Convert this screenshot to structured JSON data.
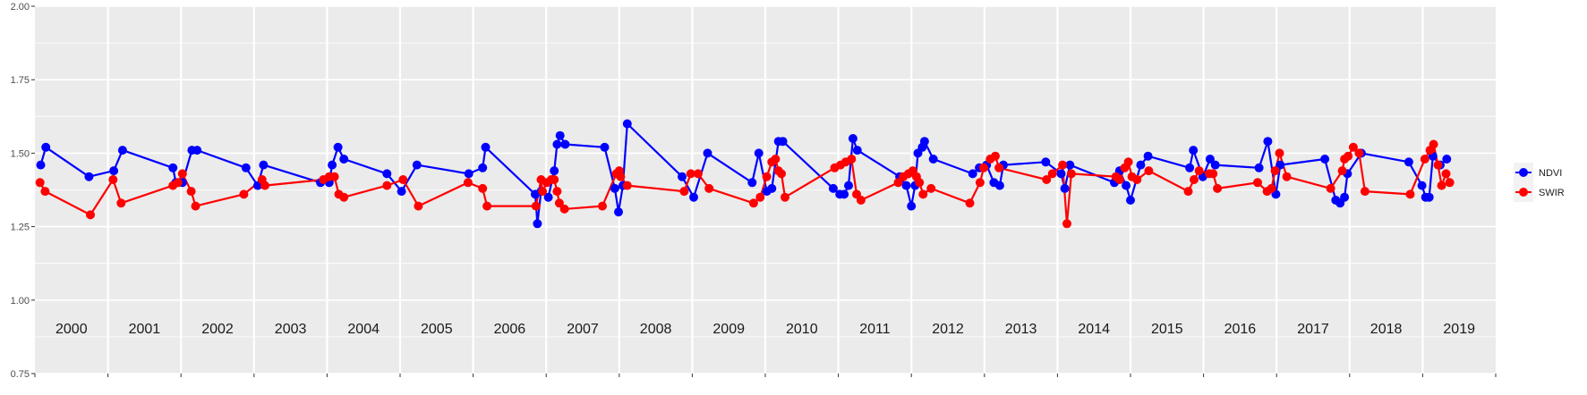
{
  "chart_data": {
    "type": "line",
    "title": "",
    "xlabel": "",
    "ylabel": "",
    "ylim": [
      0.75,
      2.0
    ],
    "xlim": [
      2000.0,
      2020.0
    ],
    "y_ticks": [
      "0.75",
      "1.00",
      "1.25",
      "1.50",
      "1.75",
      "2.00"
    ],
    "year_labels": [
      "2000",
      "2001",
      "2002",
      "2003",
      "2004",
      "2005",
      "2006",
      "2007",
      "2008",
      "2009",
      "2010",
      "2011",
      "2012",
      "2013",
      "2014",
      "2015",
      "2016",
      "2017",
      "2018",
      "2019"
    ],
    "grid": true,
    "legend_position": "right",
    "background": "#ebebeb",
    "gridline_color": "#ffffff",
    "series": [
      {
        "name": "NDVI",
        "color": "#0000ff",
        "points": [
          [
            2000.08,
            1.46
          ],
          [
            2000.15,
            1.52
          ],
          [
            2000.74,
            1.42
          ],
          [
            2001.08,
            1.44
          ],
          [
            2001.2,
            1.51
          ],
          [
            2001.89,
            1.45
          ],
          [
            2001.93,
            1.4
          ],
          [
            2002.02,
            1.4
          ],
          [
            2002.15,
            1.51
          ],
          [
            2002.22,
            1.51
          ],
          [
            2002.89,
            1.45
          ],
          [
            2003.05,
            1.39
          ],
          [
            2003.13,
            1.46
          ],
          [
            2003.91,
            1.4
          ],
          [
            2004.03,
            1.4
          ],
          [
            2004.07,
            1.46
          ],
          [
            2004.15,
            1.52
          ],
          [
            2004.23,
            1.48
          ],
          [
            2004.82,
            1.43
          ],
          [
            2005.02,
            1.37
          ],
          [
            2005.23,
            1.46
          ],
          [
            2005.94,
            1.43
          ],
          [
            2006.13,
            1.45
          ],
          [
            2006.17,
            1.52
          ],
          [
            2006.85,
            1.36
          ],
          [
            2006.88,
            1.26
          ],
          [
            2006.93,
            1.37
          ],
          [
            2007.03,
            1.35
          ],
          [
            2007.11,
            1.44
          ],
          [
            2007.15,
            1.53
          ],
          [
            2007.19,
            1.56
          ],
          [
            2007.26,
            1.53
          ],
          [
            2007.8,
            1.52
          ],
          [
            2007.94,
            1.38
          ],
          [
            2007.99,
            1.3
          ],
          [
            2008.05,
            1.39
          ],
          [
            2008.11,
            1.6
          ],
          [
            2008.86,
            1.42
          ],
          [
            2009.02,
            1.35
          ],
          [
            2009.21,
            1.5
          ],
          [
            2009.82,
            1.4
          ],
          [
            2009.91,
            1.5
          ],
          [
            2010.02,
            1.37
          ],
          [
            2010.09,
            1.38
          ],
          [
            2010.18,
            1.54
          ],
          [
            2010.24,
            1.54
          ],
          [
            2010.93,
            1.38
          ],
          [
            2011.02,
            1.36
          ],
          [
            2011.08,
            1.36
          ],
          [
            2011.14,
            1.39
          ],
          [
            2011.2,
            1.55
          ],
          [
            2011.26,
            1.51
          ],
          [
            2011.84,
            1.42
          ],
          [
            2011.93,
            1.39
          ],
          [
            2012.0,
            1.32
          ],
          [
            2012.05,
            1.39
          ],
          [
            2012.09,
            1.5
          ],
          [
            2012.15,
            1.52
          ],
          [
            2012.18,
            1.54
          ],
          [
            2012.3,
            1.48
          ],
          [
            2012.84,
            1.43
          ],
          [
            2012.93,
            1.45
          ],
          [
            2013.03,
            1.46
          ],
          [
            2013.13,
            1.4
          ],
          [
            2013.21,
            1.39
          ],
          [
            2013.26,
            1.46
          ],
          [
            2013.84,
            1.47
          ],
          [
            2014.05,
            1.43
          ],
          [
            2014.1,
            1.38
          ],
          [
            2014.17,
            1.46
          ],
          [
            2014.78,
            1.4
          ],
          [
            2014.85,
            1.44
          ],
          [
            2014.94,
            1.39
          ],
          [
            2015.0,
            1.34
          ],
          [
            2015.14,
            1.46
          ],
          [
            2015.24,
            1.49
          ],
          [
            2015.81,
            1.45
          ],
          [
            2015.86,
            1.51
          ],
          [
            2015.99,
            1.42
          ],
          [
            2016.09,
            1.48
          ],
          [
            2016.16,
            1.46
          ],
          [
            2016.76,
            1.45
          ],
          [
            2016.88,
            1.54
          ],
          [
            2016.99,
            1.36
          ],
          [
            2017.05,
            1.46
          ],
          [
            2017.66,
            1.48
          ],
          [
            2017.81,
            1.34
          ],
          [
            2017.87,
            1.33
          ],
          [
            2017.93,
            1.35
          ],
          [
            2017.97,
            1.43
          ],
          [
            2018.16,
            1.5
          ],
          [
            2018.81,
            1.47
          ],
          [
            2018.99,
            1.39
          ],
          [
            2019.04,
            1.35
          ],
          [
            2019.09,
            1.35
          ],
          [
            2019.14,
            1.49
          ],
          [
            2019.24,
            1.46
          ],
          [
            2019.33,
            1.48
          ]
        ]
      },
      {
        "name": "SWIR",
        "color": "#ff0000",
        "points": [
          [
            2000.07,
            1.4
          ],
          [
            2000.14,
            1.37
          ],
          [
            2000.76,
            1.29
          ],
          [
            2001.07,
            1.41
          ],
          [
            2001.18,
            1.33
          ],
          [
            2001.89,
            1.39
          ],
          [
            2001.96,
            1.4
          ],
          [
            2002.02,
            1.43
          ],
          [
            2002.14,
            1.37
          ],
          [
            2002.2,
            1.32
          ],
          [
            2002.86,
            1.36
          ],
          [
            2003.11,
            1.41
          ],
          [
            2003.15,
            1.39
          ],
          [
            2003.95,
            1.41
          ],
          [
            2004.03,
            1.42
          ],
          [
            2004.1,
            1.42
          ],
          [
            2004.16,
            1.36
          ],
          [
            2004.23,
            1.35
          ],
          [
            2004.82,
            1.39
          ],
          [
            2005.04,
            1.41
          ],
          [
            2005.25,
            1.32
          ],
          [
            2005.93,
            1.4
          ],
          [
            2006.13,
            1.38
          ],
          [
            2006.19,
            1.32
          ],
          [
            2006.86,
            1.32
          ],
          [
            2006.93,
            1.41
          ],
          [
            2006.95,
            1.37
          ],
          [
            2007.01,
            1.4
          ],
          [
            2007.07,
            1.41
          ],
          [
            2007.11,
            1.41
          ],
          [
            2007.15,
            1.37
          ],
          [
            2007.18,
            1.33
          ],
          [
            2007.25,
            1.31
          ],
          [
            2007.77,
            1.32
          ],
          [
            2007.96,
            1.43
          ],
          [
            2008.0,
            1.44
          ],
          [
            2008.02,
            1.42
          ],
          [
            2008.11,
            1.39
          ],
          [
            2008.89,
            1.37
          ],
          [
            2008.98,
            1.43
          ],
          [
            2009.08,
            1.43
          ],
          [
            2009.23,
            1.38
          ],
          [
            2009.84,
            1.33
          ],
          [
            2009.93,
            1.35
          ],
          [
            2010.02,
            1.42
          ],
          [
            2010.09,
            1.47
          ],
          [
            2010.14,
            1.48
          ],
          [
            2010.18,
            1.44
          ],
          [
            2010.22,
            1.43
          ],
          [
            2010.27,
            1.35
          ],
          [
            2010.95,
            1.45
          ],
          [
            2011.03,
            1.46
          ],
          [
            2011.1,
            1.47
          ],
          [
            2011.18,
            1.48
          ],
          [
            2011.25,
            1.36
          ],
          [
            2011.31,
            1.34
          ],
          [
            2011.82,
            1.4
          ],
          [
            2011.89,
            1.42
          ],
          [
            2011.96,
            1.43
          ],
          [
            2012.02,
            1.44
          ],
          [
            2012.07,
            1.42
          ],
          [
            2012.11,
            1.4
          ],
          [
            2012.16,
            1.36
          ],
          [
            2012.27,
            1.38
          ],
          [
            2012.8,
            1.33
          ],
          [
            2012.94,
            1.4
          ],
          [
            2012.99,
            1.45
          ],
          [
            2013.08,
            1.48
          ],
          [
            2013.15,
            1.49
          ],
          [
            2013.2,
            1.45
          ],
          [
            2013.85,
            1.41
          ],
          [
            2013.93,
            1.43
          ],
          [
            2014.07,
            1.46
          ],
          [
            2014.13,
            1.26
          ],
          [
            2014.19,
            1.43
          ],
          [
            2014.8,
            1.42
          ],
          [
            2014.85,
            1.41
          ],
          [
            2014.92,
            1.45
          ],
          [
            2014.97,
            1.47
          ],
          [
            2015.02,
            1.42
          ],
          [
            2015.09,
            1.41
          ],
          [
            2015.25,
            1.44
          ],
          [
            2015.79,
            1.37
          ],
          [
            2015.87,
            1.41
          ],
          [
            2015.94,
            1.44
          ],
          [
            2016.08,
            1.43
          ],
          [
            2016.13,
            1.43
          ],
          [
            2016.19,
            1.38
          ],
          [
            2016.74,
            1.4
          ],
          [
            2016.87,
            1.37
          ],
          [
            2016.93,
            1.38
          ],
          [
            2016.98,
            1.44
          ],
          [
            2017.04,
            1.5
          ],
          [
            2017.14,
            1.42
          ],
          [
            2017.74,
            1.38
          ],
          [
            2017.9,
            1.44
          ],
          [
            2017.93,
            1.48
          ],
          [
            2017.98,
            1.49
          ],
          [
            2018.05,
            1.52
          ],
          [
            2018.13,
            1.5
          ],
          [
            2018.21,
            1.37
          ],
          [
            2018.83,
            1.36
          ],
          [
            2019.03,
            1.48
          ],
          [
            2019.1,
            1.51
          ],
          [
            2019.15,
            1.53
          ],
          [
            2019.21,
            1.46
          ],
          [
            2019.26,
            1.39
          ],
          [
            2019.32,
            1.43
          ],
          [
            2019.37,
            1.4
          ]
        ]
      }
    ]
  }
}
